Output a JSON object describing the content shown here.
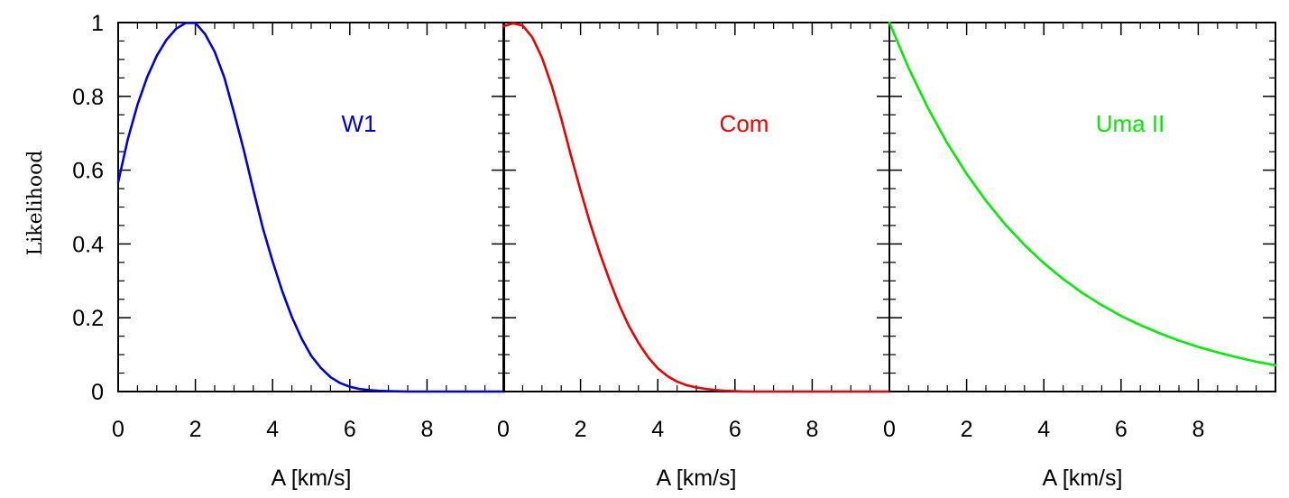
{
  "chart_data": {
    "type": "line",
    "ylabel": "Likelihood",
    "ylim": [
      0,
      1.0
    ],
    "y_ticks": [
      0,
      0.2,
      0.4,
      0.6,
      0.8,
      1
    ],
    "y_tick_labels": [
      "0",
      "0.2",
      "0.4",
      "0.6",
      "0.8",
      "1"
    ],
    "grid": false,
    "panels": [
      {
        "xlabel": "A [km/s]",
        "xlim": [
          0,
          10
        ],
        "x_ticks": [
          0,
          2,
          4,
          6,
          8
        ],
        "x_tick_labels": [
          "0",
          "2",
          "4",
          "6",
          "8"
        ],
        "label": "W1",
        "color": "#0000dd",
        "series": [
          {
            "name": "W1",
            "x": [
              0.0,
              0.25,
              0.5,
              0.75,
              1.0,
              1.25,
              1.5,
              1.75,
              2.0,
              2.25,
              2.5,
              2.75,
              3.0,
              3.25,
              3.5,
              3.75,
              4.0,
              4.25,
              4.5,
              4.75,
              5.0,
              5.25,
              5.5,
              5.75,
              6.0,
              6.25,
              6.5,
              6.75,
              7.0,
              7.5,
              8.0,
              8.5,
              9.0,
              9.5,
              10.0
            ],
            "y": [
              0.567,
              0.684,
              0.777,
              0.852,
              0.91,
              0.953,
              0.983,
              0.999,
              0.999,
              0.969,
              0.921,
              0.851,
              0.756,
              0.656,
              0.547,
              0.442,
              0.353,
              0.272,
              0.202,
              0.144,
              0.097,
              0.064,
              0.039,
              0.023,
              0.013,
              0.007,
              0.004,
              0.002,
              0.001,
              0.0,
              0.0,
              0.0,
              0.0,
              0.0,
              0.0
            ]
          }
        ]
      },
      {
        "xlabel": "A [km/s]",
        "xlim": [
          0,
          10
        ],
        "x_ticks": [
          0,
          2,
          4,
          6,
          8
        ],
        "x_tick_labels": [
          "0",
          "2",
          "4",
          "6",
          "8"
        ],
        "label": "Com",
        "color": "#ee0000",
        "series": [
          {
            "name": "Com",
            "x": [
              0.0,
              0.25,
              0.5,
              0.75,
              1.0,
              1.25,
              1.5,
              1.75,
              2.0,
              2.25,
              2.5,
              2.75,
              3.0,
              3.25,
              3.5,
              3.75,
              4.0,
              4.25,
              4.5,
              4.75,
              5.0,
              5.25,
              5.5,
              5.75,
              6.0,
              6.25,
              6.5,
              6.75,
              7.0,
              7.5,
              8.0,
              8.5,
              9.0,
              9.5,
              10.0
            ],
            "y": [
              0.99,
              0.998,
              0.992,
              0.96,
              0.905,
              0.83,
              0.74,
              0.64,
              0.545,
              0.455,
              0.375,
              0.302,
              0.235,
              0.178,
              0.132,
              0.093,
              0.063,
              0.042,
              0.027,
              0.017,
              0.011,
              0.007,
              0.004,
              0.002,
              0.001,
              0.0,
              0.0,
              0.0,
              0.0,
              0.0,
              0.0,
              0.0,
              0.0,
              0.0,
              0.0
            ]
          }
        ]
      },
      {
        "xlabel": "A [km/s]",
        "xlim": [
          0,
          10
        ],
        "x_ticks": [
          0,
          2,
          4,
          6,
          8
        ],
        "x_tick_labels": [
          "0",
          "2",
          "4",
          "6",
          "8"
        ],
        "label": "Uma II",
        "color": "#00ee00",
        "series": [
          {
            "name": "Uma II",
            "x": [
              0.0,
              0.5,
              1.0,
              1.5,
              2.0,
              2.5,
              3.0,
              3.5,
              4.0,
              4.5,
              5.0,
              5.5,
              6.0,
              6.5,
              7.0,
              7.5,
              8.0,
              8.5,
              9.0,
              9.5,
              10.0
            ],
            "y": [
              1.0,
              0.876,
              0.768,
              0.673,
              0.59,
              0.517,
              0.453,
              0.397,
              0.348,
              0.305,
              0.267,
              0.234,
              0.205,
              0.18,
              0.158,
              0.138,
              0.121,
              0.106,
              0.093,
              0.081,
              0.071
            ]
          }
        ]
      }
    ]
  }
}
